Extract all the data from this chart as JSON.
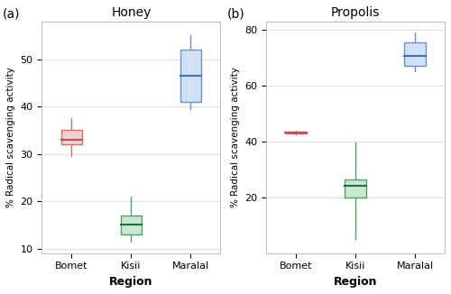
{
  "honey": {
    "title": "Honey",
    "ylabel": "% Radical scavenging activity",
    "xlabel": "Region",
    "categories": [
      "Bomet",
      "Kisii",
      "Maralal"
    ],
    "boxes": [
      {
        "whislo": 29.5,
        "q1": 32.0,
        "med": 33.0,
        "q3": 35.0,
        "whishi": 37.5,
        "box_color": "#d47070",
        "med_color": "#c05050",
        "face": "#f2d0d0"
      },
      {
        "whislo": 11.5,
        "q1": 13.0,
        "med": 15.0,
        "q3": 17.0,
        "whishi": 21.0,
        "box_color": "#50a070",
        "med_color": "#207040",
        "face": "#c8e8d0"
      },
      {
        "whislo": 39.5,
        "q1": 41.0,
        "med": 46.5,
        "q3": 52.0,
        "whishi": 55.0,
        "box_color": "#7090c0",
        "med_color": "#4070b0",
        "face": "#d0e0f5"
      }
    ],
    "ylim": [
      9,
      58
    ],
    "yticks": [
      10,
      20,
      30,
      40,
      50
    ]
  },
  "propolis": {
    "title": "Propolis",
    "ylabel": "% Radical scavenging activity",
    "xlabel": "Region",
    "categories": [
      "Bomet",
      "Kisii",
      "Maralal"
    ],
    "boxes": [
      {
        "whislo": 42.5,
        "q1": 42.8,
        "med": 43.2,
        "q3": 43.6,
        "whishi": 43.9,
        "box_color": "#d47070",
        "med_color": "#c05050",
        "face": "#f2d0d0"
      },
      {
        "whislo": 5.0,
        "q1": 20.0,
        "med": 24.0,
        "q3": 26.5,
        "whishi": 39.5,
        "box_color": "#50a070",
        "med_color": "#207040",
        "face": "#c8e8d0"
      },
      {
        "whislo": 65.0,
        "q1": 67.0,
        "med": 70.5,
        "q3": 75.5,
        "whishi": 79.0,
        "box_color": "#7090c0",
        "med_color": "#4070b0",
        "face": "#d0e0f5"
      }
    ],
    "ylim": [
      0,
      83
    ],
    "yticks": [
      20,
      40,
      60,
      80
    ]
  },
  "panel_labels": [
    "(a)",
    "(b)"
  ],
  "background_color": "#ffffff",
  "plot_bg_color": "#ffffff",
  "grid_color": "#e0e0e0",
  "box_width": 0.35,
  "linewidth": 1.0
}
